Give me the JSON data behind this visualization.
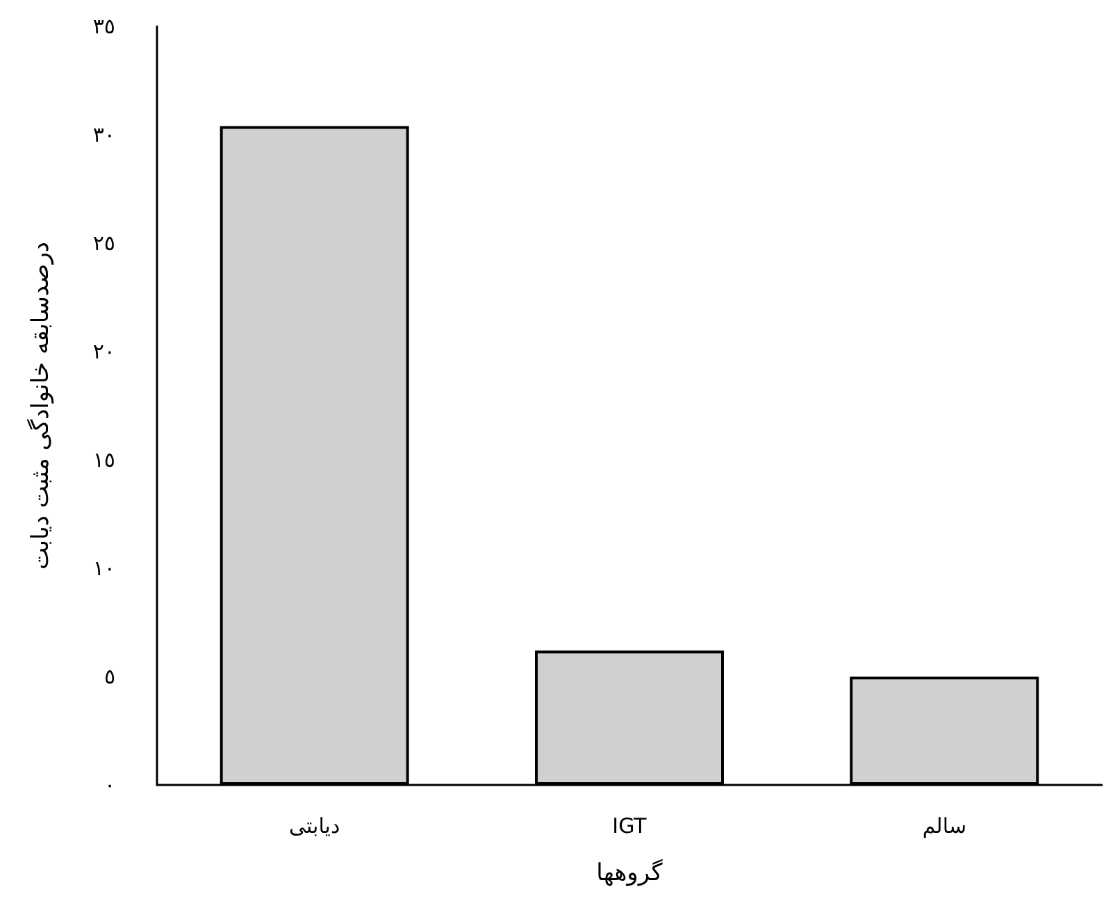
{
  "chart_data": {
    "type": "bar",
    "xlabel": "گروهها",
    "ylabel": "درصدسابقه خانوادگی مثبت دیابت",
    "categories": [
      "دیابتی",
      "IGT",
      "سالم"
    ],
    "values": [
      30.4,
      6.2,
      5.0
    ],
    "color": "#d0d0d0",
    "ylim": [
      0,
      35
    ],
    "yticks": [
      {
        "value": 0,
        "label": "٠"
      },
      {
        "value": 5,
        "label": "٥"
      },
      {
        "value": 10,
        "label": "١٠"
      },
      {
        "value": 15,
        "label": "١٥"
      },
      {
        "value": 20,
        "label": "٢٠"
      },
      {
        "value": 25,
        "label": "٢٥"
      },
      {
        "value": 30,
        "label": "٣٠"
      },
      {
        "value": 35,
        "label": "٣٥"
      }
    ],
    "grid": false
  }
}
